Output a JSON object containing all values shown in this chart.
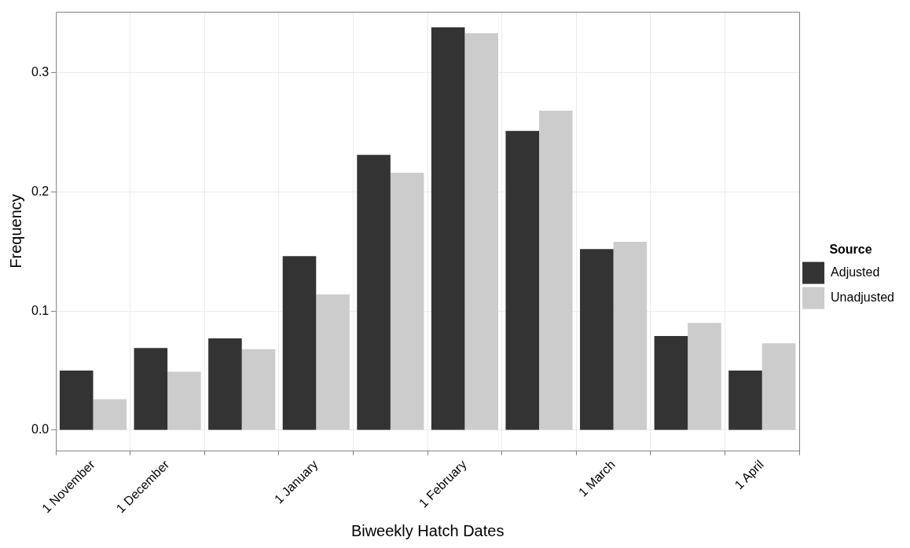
{
  "chart_data": {
    "type": "bar",
    "xlabel": "Biweekly Hatch Dates",
    "ylabel": "Frequency",
    "legend_title": "Source",
    "categories": [
      "1 November",
      "1 December",
      null,
      "1 January",
      null,
      "1 February",
      null,
      "1 March",
      null,
      "1 April"
    ],
    "series": [
      {
        "name": "Adjusted",
        "color": "#333333",
        "values": [
          0.05,
          0.069,
          0.077,
          0.146,
          0.231,
          0.338,
          0.251,
          0.152,
          0.079,
          0.05
        ]
      },
      {
        "name": "Unadjusted",
        "color": "#cccccc",
        "values": [
          0.026,
          0.049,
          0.068,
          0.114,
          0.216,
          0.333,
          0.268,
          0.158,
          0.09,
          0.073
        ]
      }
    ],
    "ylim": [
      -0.017,
      0.351
    ],
    "yticks": [
      {
        "value": 0,
        "label": "0.0"
      },
      {
        "value": 0.1,
        "label": "0.1"
      },
      {
        "value": 0.2,
        "label": "0.2"
      },
      {
        "value": 0.3,
        "label": "0.3"
      }
    ],
    "grid": true,
    "legend": "right"
  }
}
